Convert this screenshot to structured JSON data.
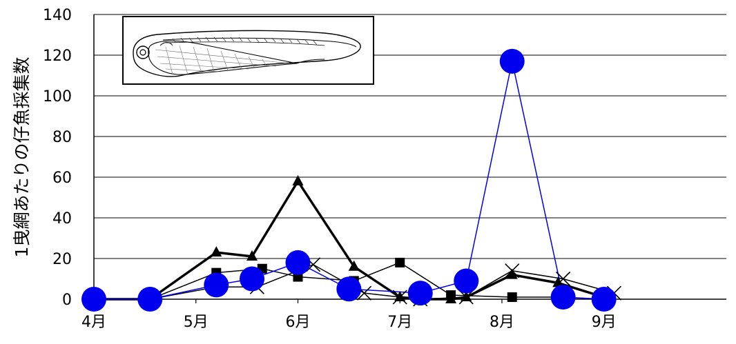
{
  "chart_data": {
    "type": "line",
    "title": "",
    "xlabel": "",
    "ylabel": "1曳網あたりの仔魚採集数",
    "ylim": [
      0,
      140
    ],
    "yticks": [
      "0",
      "20",
      "40",
      "60",
      "80",
      "100",
      "120",
      "140"
    ],
    "xlim": [
      4,
      10.2
    ],
    "xticks": [
      {
        "value": 4,
        "label": "4月"
      },
      {
        "value": 5,
        "label": "5月"
      },
      {
        "value": 6,
        "label": "6月"
      },
      {
        "value": 7,
        "label": "7月"
      },
      {
        "value": 8,
        "label": "8月"
      },
      {
        "value": 9,
        "label": "9月"
      }
    ],
    "grid": "horizontal",
    "legend": "none",
    "series": [
      {
        "marker": "triangle",
        "color": "#000000",
        "line_width": 3.5,
        "points": [
          [
            4.0,
            0
          ],
          [
            4.55,
            0
          ],
          [
            5.2,
            23
          ],
          [
            5.55,
            21
          ],
          [
            6.0,
            58
          ],
          [
            6.55,
            16
          ],
          [
            7.0,
            1
          ],
          [
            7.2,
            0
          ],
          [
            7.5,
            0
          ],
          [
            7.65,
            1
          ],
          [
            8.1,
            12
          ],
          [
            8.55,
            8
          ],
          [
            9.0,
            1
          ]
        ]
      },
      {
        "marker": "square",
        "color": "#000000",
        "line_width": 1.5,
        "points": [
          [
            4.0,
            0
          ],
          [
            4.55,
            0
          ],
          [
            5.2,
            13
          ],
          [
            5.65,
            15
          ],
          [
            6.0,
            11
          ],
          [
            6.55,
            9
          ],
          [
            7.0,
            18
          ],
          [
            7.5,
            2
          ],
          [
            8.1,
            1
          ],
          [
            8.55,
            1
          ],
          [
            9.0,
            0
          ]
        ]
      },
      {
        "marker": "x",
        "color": "#000000",
        "line_width": 1.5,
        "points": [
          [
            4.0,
            0
          ],
          [
            4.55,
            0
          ],
          [
            5.2,
            6
          ],
          [
            5.6,
            6
          ],
          [
            6.15,
            17
          ],
          [
            6.65,
            3
          ],
          [
            7.0,
            1
          ],
          [
            7.2,
            0
          ],
          [
            7.65,
            1
          ],
          [
            8.1,
            14
          ],
          [
            8.6,
            10
          ],
          [
            9.1,
            3
          ]
        ]
      },
      {
        "marker": "circle",
        "color": "#0000ee",
        "line_width": 1.5,
        "points": [
          [
            4.0,
            0
          ],
          [
            4.55,
            0
          ],
          [
            5.2,
            7
          ],
          [
            5.55,
            10
          ],
          [
            6.0,
            18
          ],
          [
            6.5,
            5
          ],
          [
            7.2,
            3
          ],
          [
            7.65,
            9
          ],
          [
            8.1,
            117
          ],
          [
            8.6,
            1
          ],
          [
            9.0,
            0
          ]
        ]
      }
    ]
  },
  "inset": {
    "name": "larva-illustration"
  }
}
